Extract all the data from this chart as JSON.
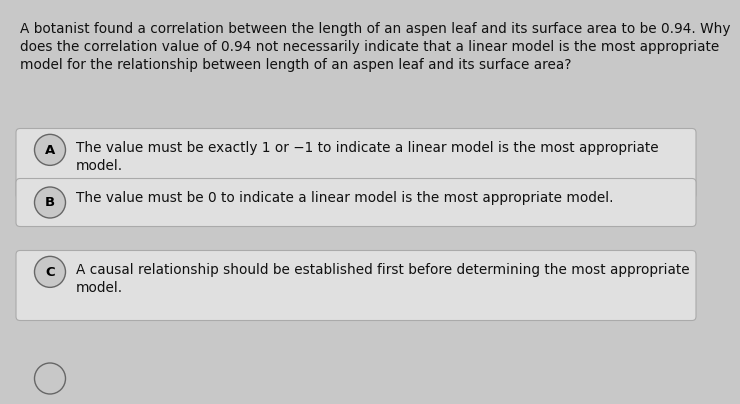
{
  "background_color": "#c8c8c8",
  "question_text": "A botanist found a correlation between the length of an aspen leaf and its surface area to be 0.94. Why\ndoes the correlation value of 0.94 not necessarily indicate that a linear model is the most appropriate\nmodel for the relationship between length of an aspen leaf and its surface area?",
  "question_fontsize": 9.8,
  "question_color": "#111111",
  "options": [
    {
      "label": "A",
      "text": "The value must be exactly 1 or −1 to indicate a linear model is the most appropriate\nmodel.",
      "box_color": "#e0e0e0",
      "two_lines": true
    },
    {
      "label": "B",
      "text": "The value must be 0 to indicate a linear model is the most appropriate model.",
      "box_color": "#e0e0e0",
      "two_lines": false
    },
    {
      "label": "C",
      "text": "A causal relationship should be established first before determining the most appropriate\nmodel.",
      "box_color": "#e0e0e0",
      "two_lines": true
    }
  ],
  "option_fontsize": 9.8,
  "option_text_color": "#111111",
  "label_fontsize": 9.5,
  "circle_bg": "#c8c8c8",
  "circle_edge": "#666666"
}
